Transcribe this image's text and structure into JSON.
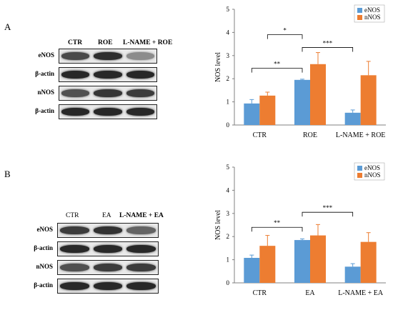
{
  "panels": [
    {
      "label": "A",
      "blot": {
        "lanes": [
          "CTR",
          "ROE",
          "L-NAME + ROE"
        ],
        "rows": [
          {
            "label": "eNOS",
            "bands": [
              0.78,
              0.92,
              0.45
            ]
          },
          {
            "label": "β-actin",
            "bands": [
              0.95,
              0.95,
              0.95
            ]
          },
          {
            "label": "nNOS",
            "bands": [
              0.75,
              0.88,
              0.85
            ]
          },
          {
            "label": "β-actin",
            "bands": [
              0.95,
              0.95,
              0.95
            ]
          }
        ]
      }
    },
    {
      "label": "B",
      "blot": {
        "lanes": [
          "CTR",
          "EA",
          "L-NAME + EA"
        ],
        "rows": [
          {
            "label": "eNOS",
            "bands": [
              0.85,
              0.9,
              0.65
            ]
          },
          {
            "label": "β-actin",
            "bands": [
              0.95,
              0.95,
              0.95
            ]
          },
          {
            "label": "nNOS",
            "bands": [
              0.75,
              0.85,
              0.85
            ]
          },
          {
            "label": "β-actin",
            "bands": [
              0.95,
              0.95,
              0.95
            ]
          }
        ]
      }
    }
  ],
  "chart_data": [
    {
      "type": "bar",
      "categories": [
        "CTR",
        "ROE",
        "L-NAME + ROE"
      ],
      "series": [
        {
          "name": "eNOS",
          "values": [
            0.93,
            1.95,
            0.53
          ],
          "errors": [
            0.17,
            0.03,
            0.12
          ],
          "color": "#5b9bd5"
        },
        {
          "name": "nNOS",
          "values": [
            1.27,
            2.63,
            2.15
          ],
          "errors": [
            0.15,
            0.5,
            0.6
          ],
          "color": "#ed7d31"
        }
      ],
      "ylabel": "NOS level",
      "ylim": [
        0,
        5
      ],
      "yticks": [
        0,
        1,
        2,
        3,
        4,
        5
      ],
      "legend": "top-right",
      "grid": false,
      "significance": [
        {
          "label": "**",
          "from": [
            0,
            0
          ],
          "to": [
            1,
            0
          ],
          "y": 2.45
        },
        {
          "label": "*",
          "from": [
            0,
            1
          ],
          "to": [
            1,
            0
          ],
          "y": 3.9
        },
        {
          "label": "***",
          "from": [
            1,
            0
          ],
          "to": [
            2,
            0
          ],
          "y": 3.35
        }
      ]
    },
    {
      "type": "bar",
      "categories": [
        "CTR",
        "EA",
        "L-NAME + EA"
      ],
      "series": [
        {
          "name": "eNOS",
          "values": [
            1.08,
            1.85,
            0.7
          ],
          "errors": [
            0.12,
            0.05,
            0.13
          ],
          "color": "#5b9bd5"
        },
        {
          "name": "nNOS",
          "values": [
            1.6,
            2.05,
            1.77
          ],
          "errors": [
            0.45,
            0.47,
            0.4
          ],
          "color": "#ed7d31"
        }
      ],
      "ylabel": "NOS level",
      "ylim": [
        0,
        5
      ],
      "yticks": [
        0,
        1,
        2,
        3,
        4,
        5
      ],
      "legend": "top-right",
      "grid": false,
      "significance": [
        {
          "label": "**",
          "from": [
            0,
            0
          ],
          "to": [
            1,
            0
          ],
          "y": 2.4
        },
        {
          "label": "***",
          "from": [
            1,
            0
          ],
          "to": [
            2,
            0
          ],
          "y": 3.05
        }
      ]
    }
  ]
}
